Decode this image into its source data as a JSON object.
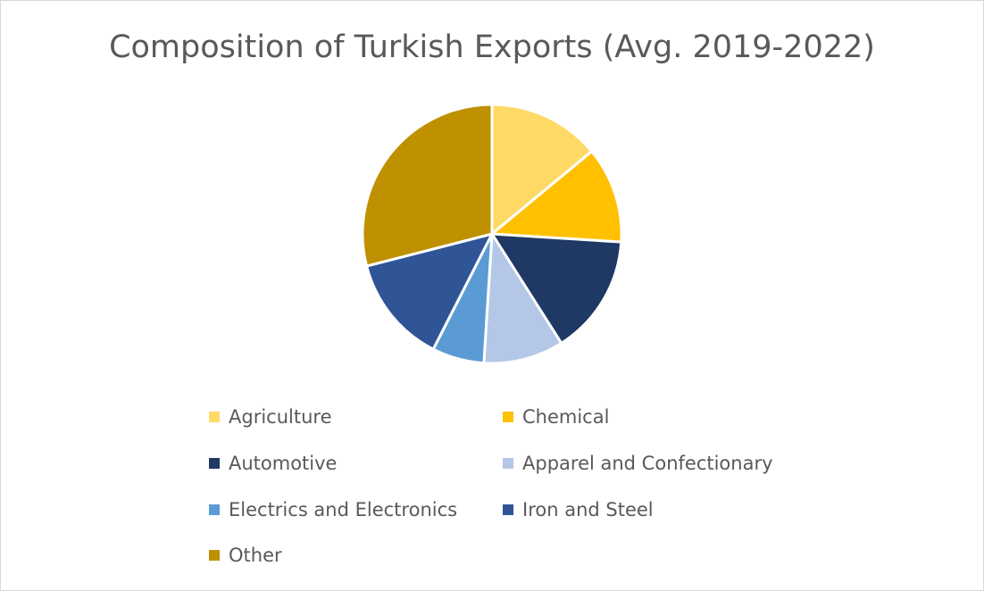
{
  "chart_data": {
    "type": "pie",
    "title": "Composition of Turkish Exports (Avg. 2019-2022)",
    "legend_position": "bottom",
    "start_angle": "12 o'clock",
    "direction": "clockwise",
    "slices": [
      {
        "label": "Agriculture",
        "value": 14,
        "color": "#FFD966"
      },
      {
        "label": "Chemical",
        "value": 12,
        "color": "#FFC000"
      },
      {
        "label": "Automotive",
        "value": 15,
        "color": "#1F3864"
      },
      {
        "label": "Apparel and Confectionary",
        "value": 10,
        "color": "#B4C7E7"
      },
      {
        "label": "Electrics and Electronics",
        "value": 6.5,
        "color": "#5B9BD5"
      },
      {
        "label": "Iron and Steel",
        "value": 13.5,
        "color": "#2F5597"
      },
      {
        "label": "Other",
        "value": 29,
        "color": "#BF9000"
      }
    ]
  }
}
